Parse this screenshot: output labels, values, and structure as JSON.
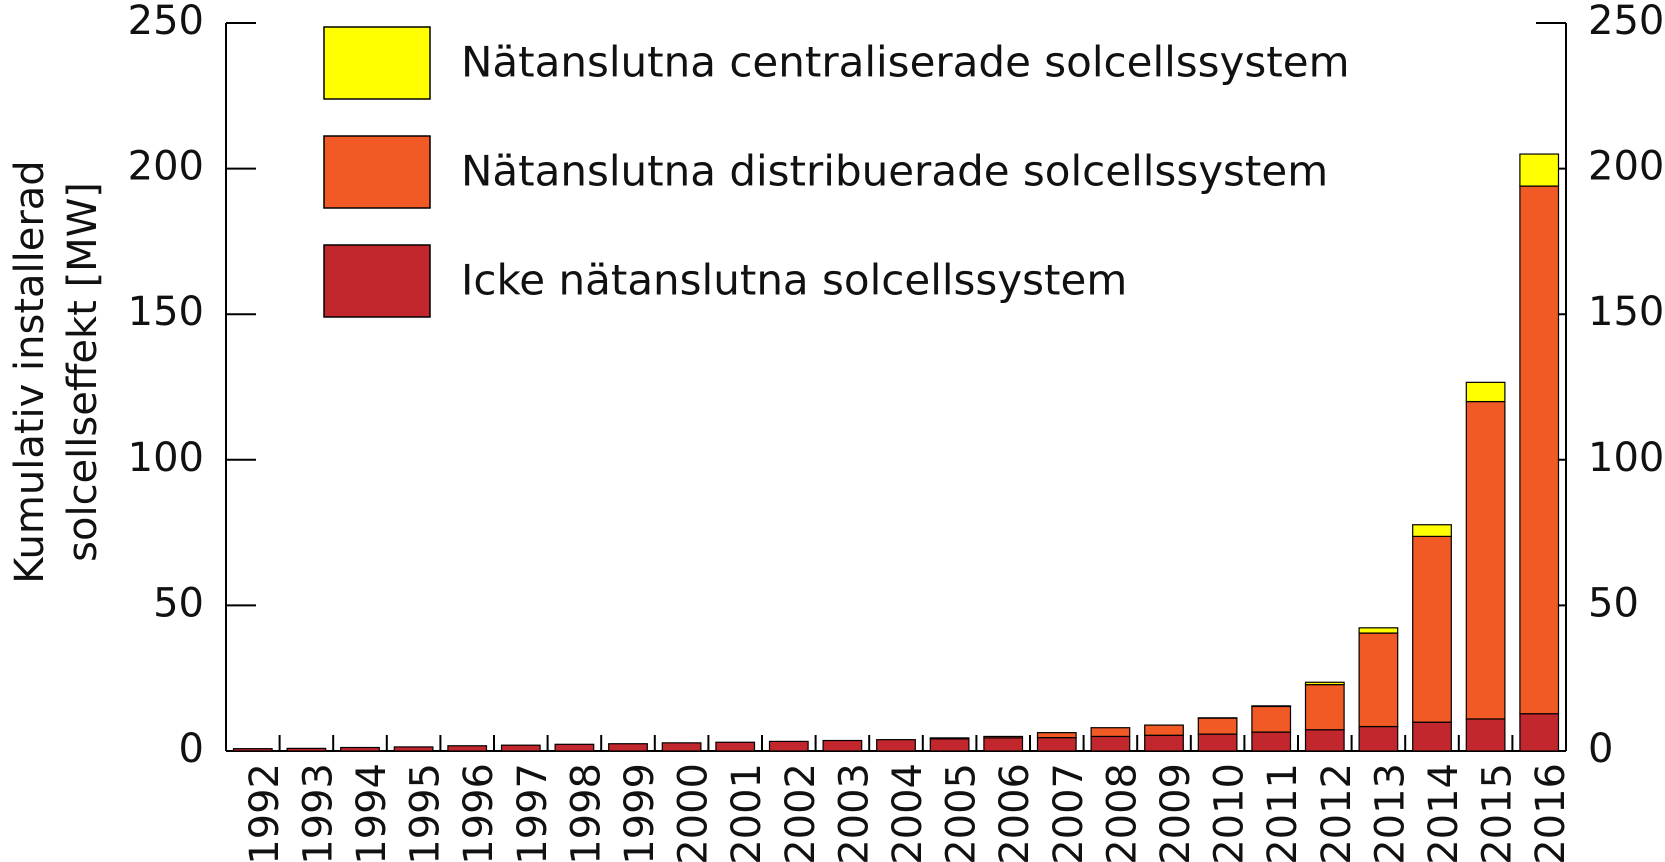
{
  "chart_data": {
    "type": "stacked_bar",
    "ylabel": [
      "Kumulativ installerad",
      "solcellseffekt [MW]"
    ],
    "categories": [
      "1992",
      "1993",
      "1994",
      "1995",
      "1996",
      "1997",
      "1998",
      "1999",
      "2000",
      "2001",
      "2002",
      "2003",
      "2004",
      "2005",
      "2006",
      "2007",
      "2008",
      "2009",
      "2010",
      "2011",
      "2012",
      "2013",
      "2014",
      "2015",
      "2016"
    ],
    "series": [
      {
        "name": "Icke nätanslutna solcellssystem",
        "color": "#c1272d",
        "values": [
          0.8,
          0.9,
          1.2,
          1.4,
          1.8,
          2.0,
          2.3,
          2.5,
          2.8,
          3.0,
          3.3,
          3.6,
          3.9,
          4.2,
          4.5,
          4.6,
          5.0,
          5.4,
          5.8,
          6.5,
          7.3,
          8.4,
          9.9,
          11.0,
          12.8
        ]
      },
      {
        "name": "Nätanslutna distribuerade solcellssystem",
        "color": "#f15a24",
        "values": [
          0,
          0,
          0,
          0,
          0,
          0,
          0,
          0,
          0,
          0,
          0,
          0,
          0,
          0.3,
          0.5,
          1.7,
          3.0,
          3.5,
          5.5,
          8.8,
          15.5,
          32.1,
          63.8,
          109,
          181.2
        ]
      },
      {
        "name": "Nätanslutna centraliserade solcellssystem",
        "color": "#ffff00",
        "values": [
          0,
          0,
          0,
          0,
          0,
          0,
          0,
          0,
          0,
          0,
          0,
          0,
          0,
          0,
          0,
          0,
          0,
          0,
          0.1,
          0.2,
          0.8,
          1.8,
          4.0,
          6.6,
          11.0
        ]
      }
    ],
    "ylim": [
      0,
      250
    ],
    "yticks": [
      0,
      50,
      100,
      150,
      200,
      250
    ],
    "y2lim": [
      0,
      250
    ],
    "y2ticks": [
      0,
      50,
      100,
      150,
      200,
      250
    ],
    "legend": "upper-left"
  }
}
